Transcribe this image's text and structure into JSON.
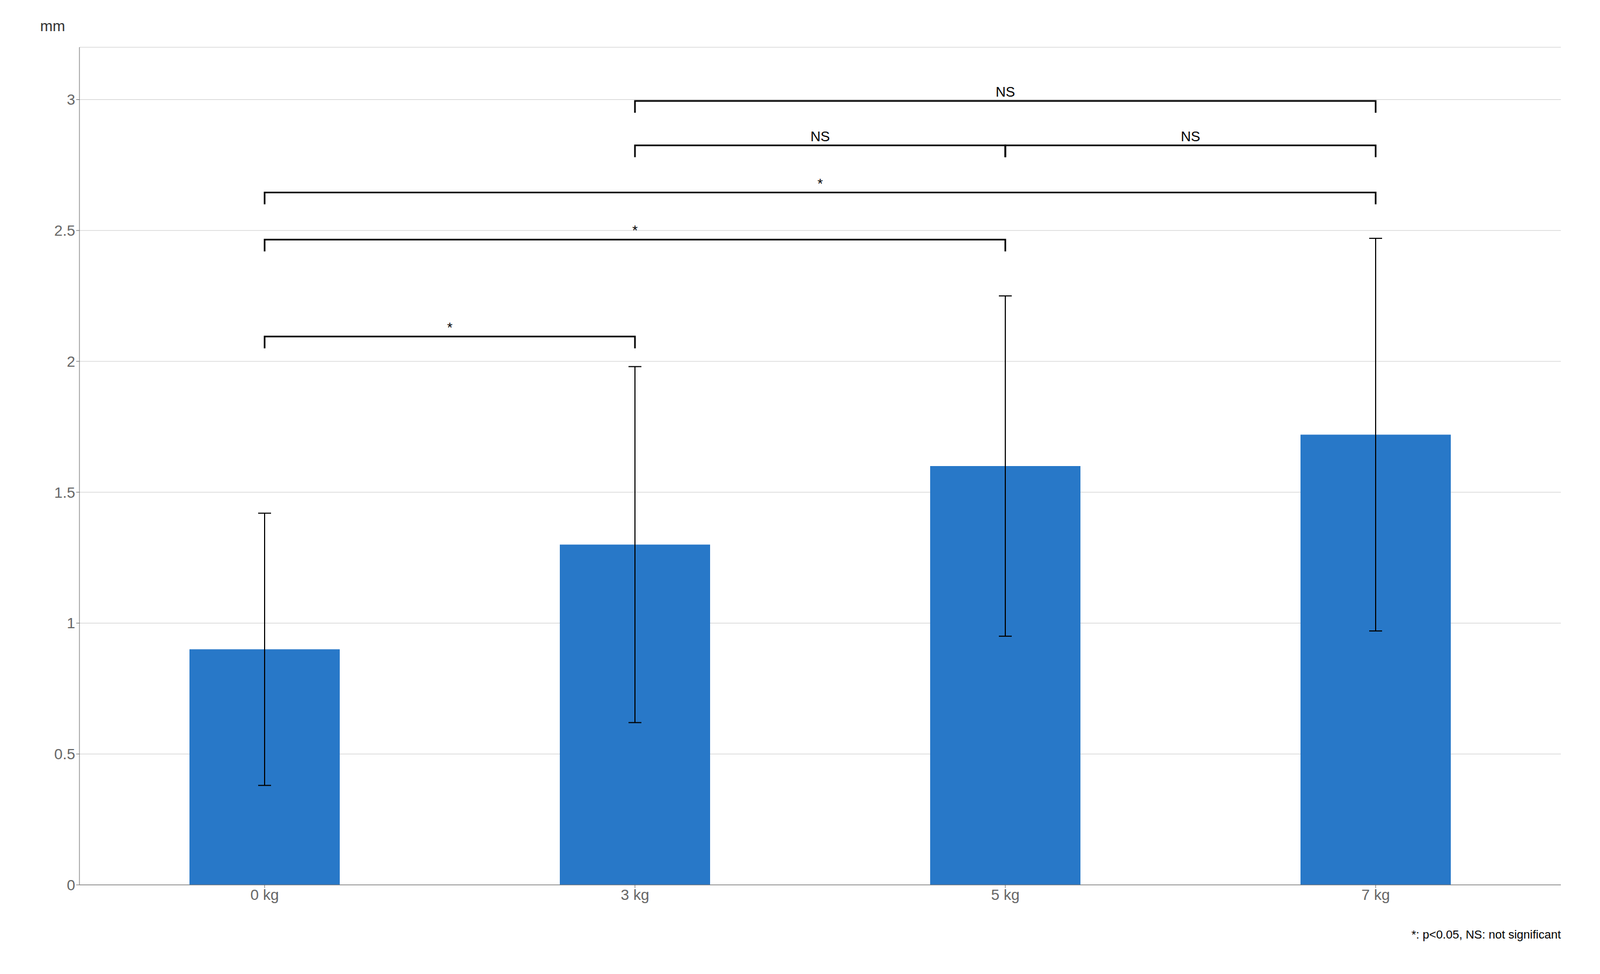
{
  "chart_data": {
    "type": "bar",
    "categories": [
      "0 kg",
      "3 kg",
      "5 kg",
      "7 kg"
    ],
    "values": [
      0.9,
      1.3,
      1.6,
      1.72
    ],
    "errors": [
      0.52,
      0.68,
      0.65,
      0.75
    ],
    "color": "#2878C8",
    "ylabel": "mm",
    "ylim": [
      0,
      3.2
    ],
    "yticks": [
      0,
      0.5,
      1,
      1.5,
      2,
      2.5,
      3
    ],
    "grid": true,
    "brackets": [
      {
        "from": "0 kg",
        "to": "3 kg",
        "y": 2.05,
        "label": "*"
      },
      {
        "from": "0 kg",
        "to": "5 kg",
        "y": 2.42,
        "label": "*"
      },
      {
        "from": "0 kg",
        "to": "7 kg",
        "y": 2.6,
        "label": "*"
      },
      {
        "from": "3 kg",
        "to": "5 kg",
        "y": 2.78,
        "label": "NS"
      },
      {
        "from": "5 kg",
        "to": "7 kg",
        "y": 2.78,
        "label": "NS"
      },
      {
        "from": "3 kg",
        "to": "7 kg",
        "y": 2.95,
        "label": "NS"
      }
    ],
    "annotations": [
      {
        "text": "*: p<0.05, NS: not significant"
      }
    ]
  }
}
